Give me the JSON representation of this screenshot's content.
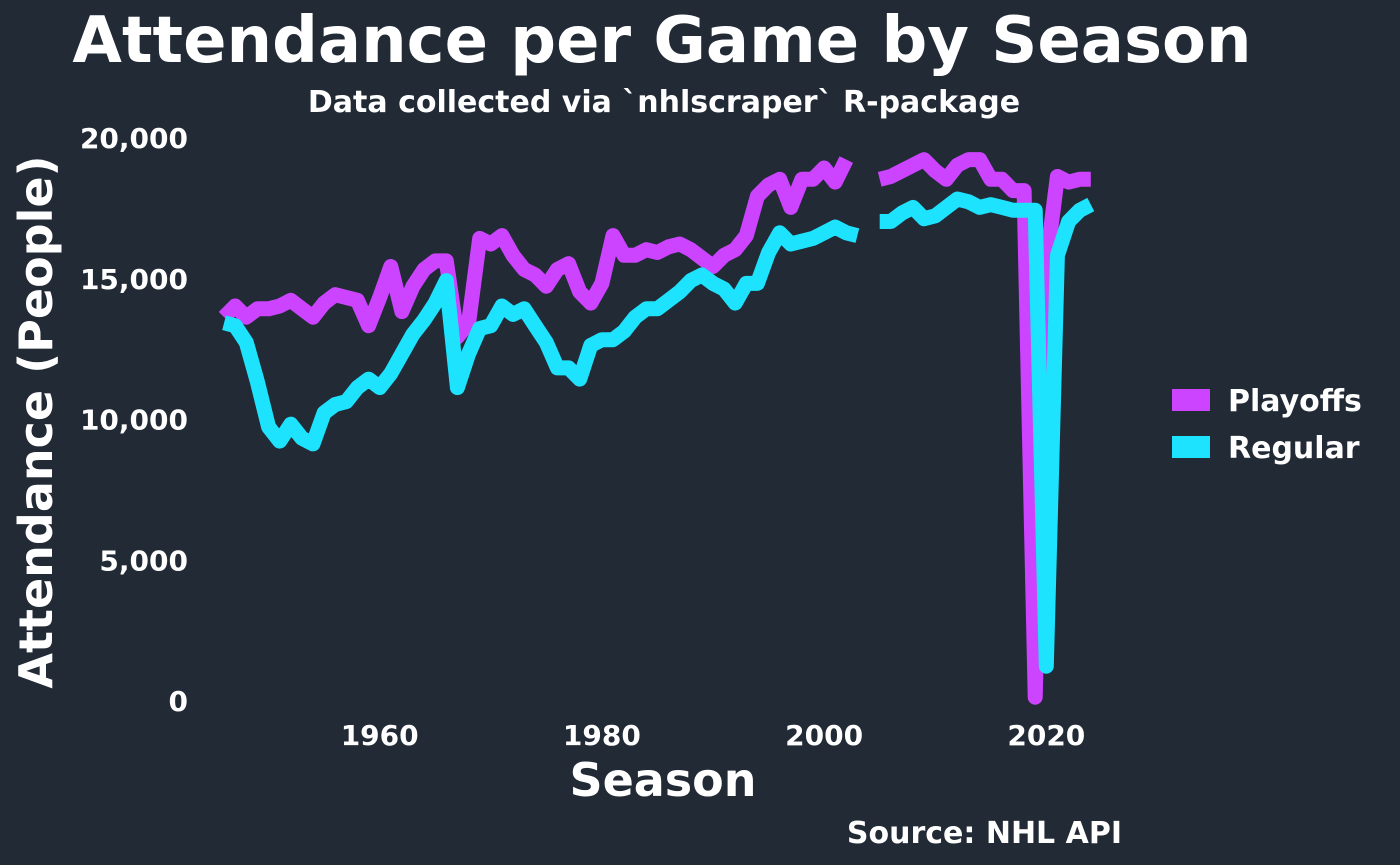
{
  "chart_data": {
    "type": "line",
    "title": "Attendance per Game by Season",
    "subtitle": "Data collected via `nhlscraper` R-package",
    "xlabel": "Season",
    "ylabel": "Attendance (People)",
    "caption": "Source: NHL API",
    "xlim": [
      1945,
      2026
    ],
    "ylim": [
      0,
      20500
    ],
    "x_ticks": [
      1960,
      1980,
      2000,
      2020
    ],
    "y_ticks": [
      0,
      5000,
      10000,
      15000,
      20000
    ],
    "y_tick_labels": [
      "0",
      "5,000",
      "10,000",
      "15,000",
      "20,000"
    ],
    "grid": false,
    "legend": "right",
    "series": [
      {
        "name": "Playoffs",
        "color": "#cc44ff",
        "points": [
          [
            1946,
            13600
          ],
          [
            1947,
            14000
          ],
          [
            1948,
            13600
          ],
          [
            1949,
            13900
          ],
          [
            1950,
            13900
          ],
          [
            1951,
            14000
          ],
          [
            1952,
            14200
          ],
          [
            1953,
            13900
          ],
          [
            1954,
            13600
          ],
          [
            1955,
            14100
          ],
          [
            1956,
            14400
          ],
          [
            1957,
            14300
          ],
          [
            1958,
            14200
          ],
          [
            1959,
            13300
          ],
          [
            1960,
            14300
          ],
          [
            1961,
            15400
          ],
          [
            1962,
            13800
          ],
          [
            1963,
            14700
          ],
          [
            1964,
            15300
          ],
          [
            1965,
            15600
          ],
          [
            1966,
            15600
          ],
          [
            1967,
            12900
          ],
          [
            1968,
            13400
          ],
          [
            1969,
            16400
          ],
          [
            1970,
            16200
          ],
          [
            1971,
            16500
          ],
          [
            1972,
            15800
          ],
          [
            1973,
            15300
          ],
          [
            1974,
            15100
          ],
          [
            1975,
            14700
          ],
          [
            1976,
            15300
          ],
          [
            1977,
            15500
          ],
          [
            1978,
            14500
          ],
          [
            1979,
            14100
          ],
          [
            1980,
            14800
          ],
          [
            1981,
            16500
          ],
          [
            1982,
            15800
          ],
          [
            1983,
            15800
          ],
          [
            1984,
            16000
          ],
          [
            1985,
            15900
          ],
          [
            1986,
            16100
          ],
          [
            1987,
            16200
          ],
          [
            1988,
            16000
          ],
          [
            1989,
            15700
          ],
          [
            1990,
            15400
          ],
          [
            1991,
            15800
          ],
          [
            1992,
            16000
          ],
          [
            1993,
            16500
          ],
          [
            1994,
            17900
          ],
          [
            1995,
            18300
          ],
          [
            1996,
            18500
          ],
          [
            1997,
            17500
          ],
          [
            1998,
            18500
          ],
          [
            1999,
            18500
          ],
          [
            2000,
            18900
          ],
          [
            2001,
            18400
          ],
          [
            2002,
            19200
          ],
          null,
          [
            2005,
            18500
          ],
          [
            2006,
            18600
          ],
          [
            2007,
            18800
          ],
          [
            2008,
            19000
          ],
          [
            2009,
            19200
          ],
          [
            2010,
            18800
          ],
          [
            2011,
            18500
          ],
          [
            2012,
            19000
          ],
          [
            2013,
            19200
          ],
          [
            2014,
            19200
          ],
          [
            2015,
            18500
          ],
          [
            2016,
            18500
          ],
          [
            2017,
            18100
          ],
          [
            2018,
            18100
          ],
          [
            2019,
            100
          ],
          [
            2020,
            15500
          ],
          [
            2021,
            18600
          ],
          [
            2022,
            18400
          ],
          [
            2023,
            18500
          ],
          [
            2024,
            18500
          ]
        ]
      },
      {
        "name": "Regular",
        "color": "#1ee3ff",
        "points": [
          [
            1946,
            13400
          ],
          [
            1947,
            13300
          ],
          [
            1948,
            12700
          ],
          [
            1949,
            11300
          ],
          [
            1950,
            9700
          ],
          [
            1951,
            9200
          ],
          [
            1952,
            9800
          ],
          [
            1953,
            9300
          ],
          [
            1954,
            9100
          ],
          [
            1955,
            10200
          ],
          [
            1956,
            10500
          ],
          [
            1957,
            10600
          ],
          [
            1958,
            11100
          ],
          [
            1959,
            11400
          ],
          [
            1960,
            11100
          ],
          [
            1961,
            11600
          ],
          [
            1962,
            12300
          ],
          [
            1963,
            13000
          ],
          [
            1964,
            13500
          ],
          [
            1965,
            14100
          ],
          [
            1966,
            14900
          ],
          [
            1967,
            11100
          ],
          [
            1968,
            12300
          ],
          [
            1969,
            13200
          ],
          [
            1970,
            13300
          ],
          [
            1971,
            14000
          ],
          [
            1972,
            13700
          ],
          [
            1973,
            13900
          ],
          [
            1974,
            13300
          ],
          [
            1975,
            12700
          ],
          [
            1976,
            11800
          ],
          [
            1977,
            11800
          ],
          [
            1978,
            11400
          ],
          [
            1979,
            12600
          ],
          [
            1980,
            12800
          ],
          [
            1981,
            12800
          ],
          [
            1982,
            13100
          ],
          [
            1983,
            13600
          ],
          [
            1984,
            13900
          ],
          [
            1985,
            13900
          ],
          [
            1986,
            14200
          ],
          [
            1987,
            14500
          ],
          [
            1988,
            14900
          ],
          [
            1989,
            15100
          ],
          [
            1990,
            14800
          ],
          [
            1991,
            14600
          ],
          [
            1992,
            14100
          ],
          [
            1993,
            14800
          ],
          [
            1994,
            14800
          ],
          [
            1995,
            15900
          ],
          [
            1996,
            16600
          ],
          [
            1997,
            16200
          ],
          [
            1998,
            16300
          ],
          [
            1999,
            16400
          ],
          [
            2000,
            16600
          ],
          [
            2001,
            16800
          ],
          [
            2002,
            16600
          ],
          [
            2003,
            16500
          ],
          null,
          [
            2005,
            17000
          ],
          [
            2006,
            17000
          ],
          [
            2007,
            17300
          ],
          [
            2008,
            17500
          ],
          [
            2009,
            17100
          ],
          [
            2010,
            17200
          ],
          [
            2011,
            17500
          ],
          [
            2012,
            17800
          ],
          [
            2013,
            17700
          ],
          [
            2014,
            17500
          ],
          [
            2015,
            17600
          ],
          [
            2016,
            17500
          ],
          [
            2017,
            17400
          ],
          [
            2018,
            17400
          ],
          [
            2019,
            17400
          ],
          [
            2020,
            1200
          ],
          [
            2021,
            15800
          ],
          [
            2022,
            17000
          ],
          [
            2023,
            17400
          ],
          [
            2024,
            17600
          ]
        ]
      }
    ]
  }
}
